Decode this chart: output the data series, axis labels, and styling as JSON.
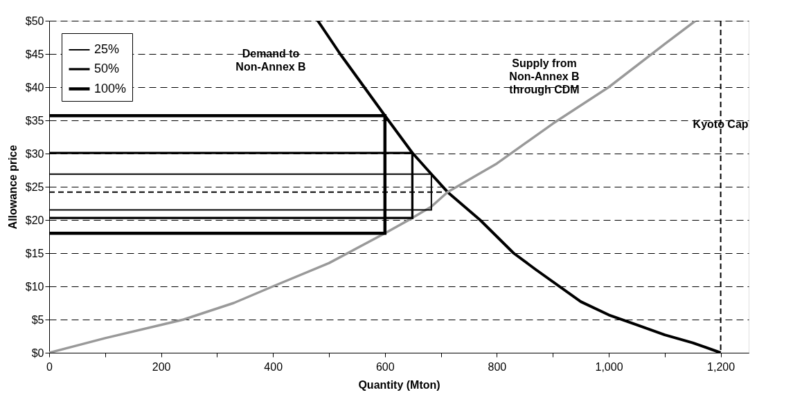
{
  "chart_data": {
    "type": "line",
    "xlabel": "Quantity (Mton)",
    "ylabel": "Allowance price",
    "xlim": [
      0,
      1250
    ],
    "ylim": [
      0,
      50
    ],
    "xticks": [
      0,
      {
        "value": 100,
        "label": null
      },
      200,
      {
        "value": 300,
        "label": null
      },
      400,
      {
        "value": 500,
        "label": null
      },
      600,
      {
        "value": 700,
        "label": null
      },
      800,
      {
        "value": 900,
        "label": null
      },
      {
        "value": 1000,
        "label": "1,000"
      },
      {
        "value": 1100,
        "label": null
      },
      {
        "value": 1200,
        "label": "1,200"
      }
    ],
    "yticks": [
      {
        "value": 0,
        "label": "$0"
      },
      {
        "value": 5,
        "label": "$5"
      },
      {
        "value": 10,
        "label": "$10"
      },
      {
        "value": 15,
        "label": "$15"
      },
      {
        "value": 20,
        "label": "$20"
      },
      {
        "value": 25,
        "label": "$25"
      },
      {
        "value": 30,
        "label": "$30"
      },
      {
        "value": 35,
        "label": "$35"
      },
      {
        "value": 40,
        "label": "$40"
      },
      {
        "value": 45,
        "label": "$45"
      },
      {
        "value": 50,
        "label": "$50"
      }
    ],
    "grid": "y",
    "legend": "top left",
    "series": [
      {
        "color": "#000000",
        "line_style": "solid",
        "x": [
          480,
          520,
          600,
          649,
          683,
          712,
          770,
          830,
          870,
          950,
          1000,
          1050,
          1100,
          1150,
          1200
        ],
        "values": [
          50,
          45,
          35.7,
          30.1,
          26.9,
          24.2,
          20,
          15,
          12.5,
          7.7,
          5.7,
          4.2,
          2.7,
          1.5,
          0
        ]
      },
      {
        "color": "#999999",
        "line_style": "solid",
        "x": [
          0,
          100,
          240,
          330,
          400,
          500,
          600,
          649,
          683,
          712,
          800,
          900,
          1000,
          1100,
          1155
        ],
        "values": [
          0,
          2.2,
          5,
          7.5,
          10,
          13.5,
          18,
          20.3,
          22,
          24.2,
          28.5,
          34.5,
          40,
          46.5,
          50
        ]
      },
      {
        "name": "25%",
        "color": "#000000",
        "x": [
          0,
          683,
          683,
          0
        ],
        "values": [
          26.9,
          26.9,
          21.5,
          21.5
        ]
      },
      {
        "name": "50%",
        "color": "#000000",
        "x": [
          0,
          649,
          649,
          0
        ],
        "values": [
          30.1,
          30.1,
          20.3,
          20.3
        ]
      },
      {
        "name": "100%",
        "color": "#000000",
        "x": [
          0,
          600,
          600,
          0
        ],
        "values": [
          35.7,
          35.7,
          18,
          18
        ]
      },
      {
        "color": "#000000",
        "line_style": "dashed",
        "x": [
          0,
          707
        ],
        "values": [
          24.2,
          24.2
        ]
      }
    ],
    "ref_lines": [
      {
        "axis": "x",
        "value": 1200,
        "label": "Kyoto Cap",
        "line_style": "dashed",
        "color": "#000000"
      }
    ],
    "annotations": [
      "Demand to\nNon-Annex B",
      "Supply from\nNon-Annex B\nthrough CDM"
    ]
  }
}
